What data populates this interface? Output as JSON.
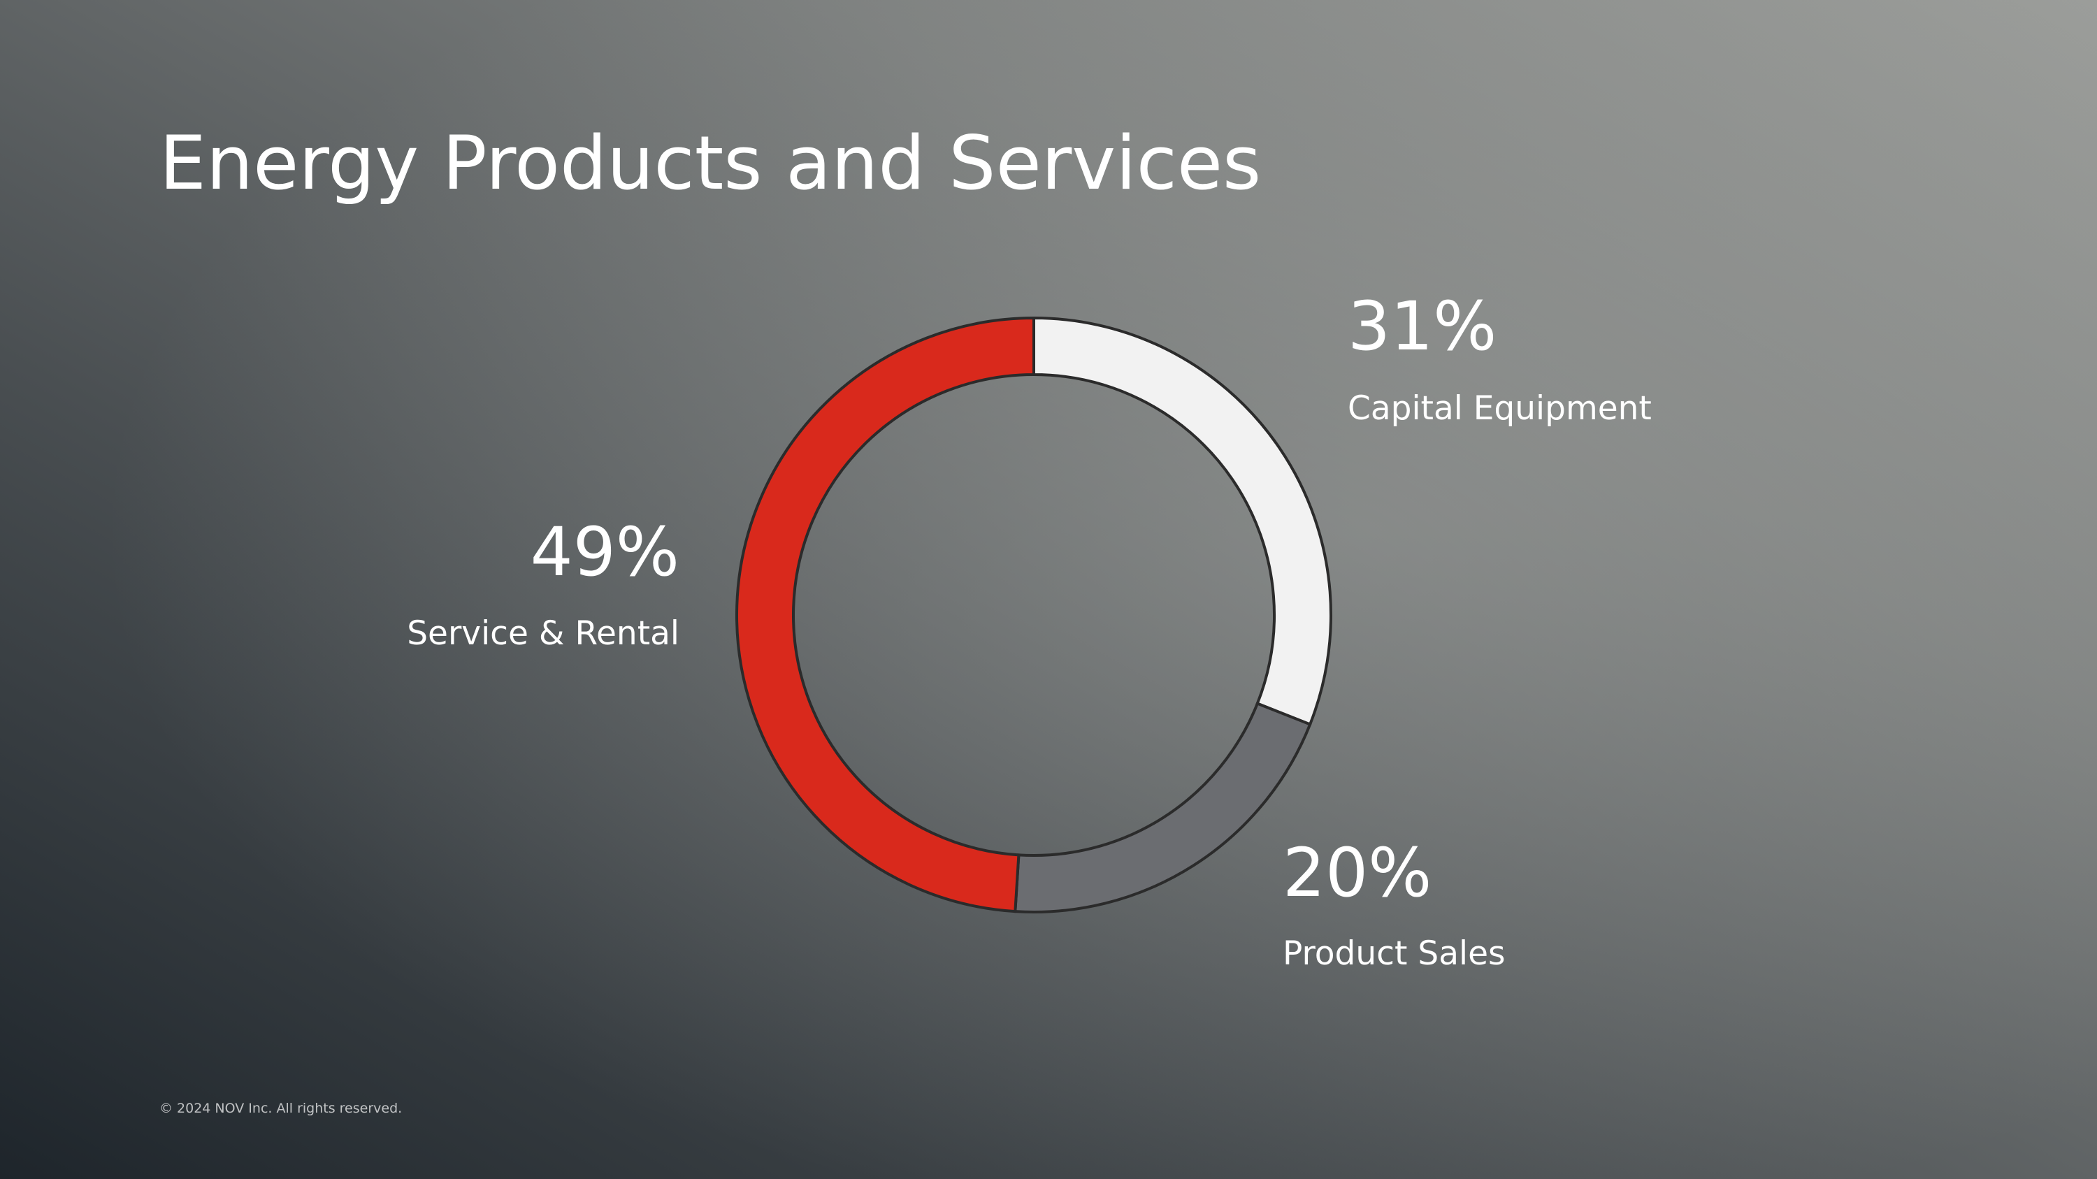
{
  "chart_data": {
    "type": "donut",
    "title": "Energy Products and Services",
    "categories": [
      "Capital Equipment",
      "Product Sales",
      "Service & Rental"
    ],
    "values": [
      31,
      20,
      49
    ],
    "value_labels": [
      "31%",
      "20%",
      "49%"
    ],
    "colors": [
      "#f2f2f2",
      "#6b6d71",
      "#d9291c"
    ]
  },
  "footer": "© 2024 NOV Inc. All rights reserved."
}
